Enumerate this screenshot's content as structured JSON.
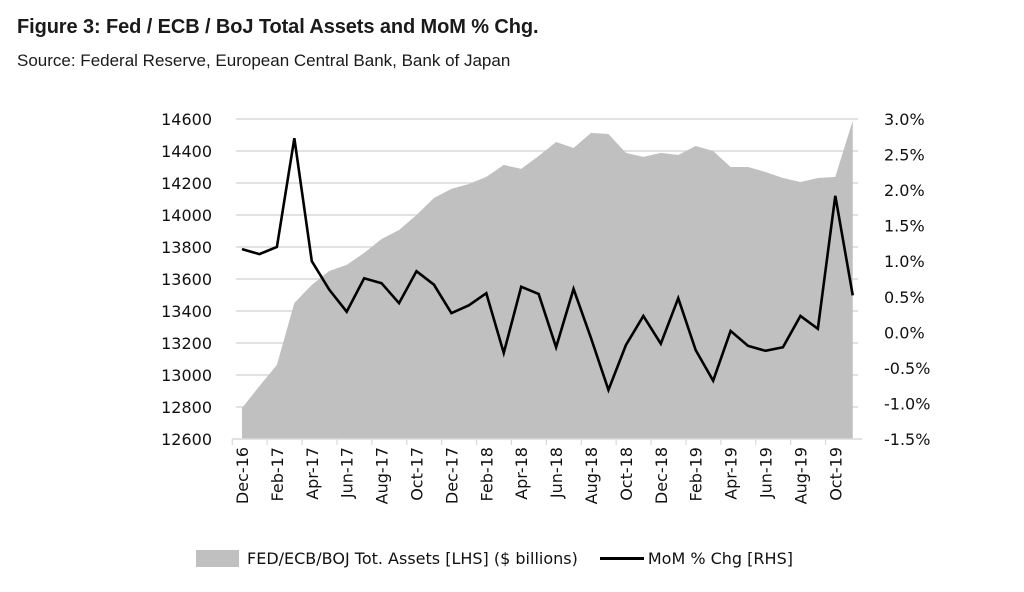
{
  "header": {
    "title": "Figure 3:  Fed / ECB / BoJ Total Assets and MoM % Chg.",
    "subtitle": "Source: Federal Reserve, European Central Bank, Bank of Japan"
  },
  "colors": {
    "area_fill": "#c0c0c0",
    "line": "#000000",
    "grid": "#d9d9d9"
  },
  "chart_data": {
    "type": "area+line",
    "title": "Fed / ECB / BoJ Total Assets and MoM % Chg.",
    "x": [
      "Dec-16",
      "Jan-17",
      "Feb-17",
      "Mar-17",
      "Apr-17",
      "May-17",
      "Jun-17",
      "Jul-17",
      "Aug-17",
      "Sep-17",
      "Oct-17",
      "Nov-17",
      "Dec-17",
      "Jan-18",
      "Feb-18",
      "Mar-18",
      "Apr-18",
      "May-18",
      "Jun-18",
      "Jul-18",
      "Aug-18",
      "Sep-18",
      "Oct-18",
      "Nov-18",
      "Dec-18",
      "Jan-19",
      "Feb-19",
      "Mar-19",
      "Apr-19",
      "May-19",
      "Jun-19",
      "Jul-19",
      "Aug-19",
      "Sep-19",
      "Oct-19",
      "Nov-19"
    ],
    "x_tick_labels": [
      "Dec-16",
      "Feb-17",
      "Apr-17",
      "Jun-17",
      "Aug-17",
      "Oct-17",
      "Dec-17",
      "Feb-18",
      "Apr-18",
      "Jun-18",
      "Aug-18",
      "Oct-18",
      "Dec-18",
      "Feb-19",
      "Apr-19",
      "Jun-19",
      "Aug-19",
      "Oct-19"
    ],
    "series": [
      {
        "name": "FED/ECB/BOJ Tot. Assets [LHS] ($ billions)",
        "type": "area",
        "axis": "left",
        "values": [
          12794,
          12931,
          13063,
          13450,
          13563,
          13650,
          13688,
          13763,
          13850,
          13906,
          14000,
          14106,
          14163,
          14194,
          14238,
          14313,
          14288,
          14369,
          14456,
          14419,
          14513,
          14506,
          14388,
          14363,
          14388,
          14375,
          14431,
          14400,
          14300,
          14300,
          14269,
          14231,
          14206,
          14231,
          14238,
          14590
        ]
      },
      {
        "name": "MoM % Chg [RHS]",
        "type": "line",
        "axis": "right",
        "values": [
          1.17,
          1.1,
          1.2,
          2.73,
          1.0,
          0.6,
          0.29,
          0.76,
          0.69,
          0.41,
          0.86,
          0.67,
          0.27,
          0.38,
          0.55,
          -0.29,
          0.64,
          0.54,
          -0.21,
          0.61,
          -0.08,
          -0.81,
          -0.18,
          0.23,
          -0.16,
          0.48,
          -0.25,
          -0.68,
          0.02,
          -0.19,
          -0.26,
          -0.21,
          0.23,
          0.05,
          1.92,
          0.52
        ]
      }
    ],
    "y_left": {
      "ylim": [
        12600,
        14600
      ],
      "ticks": [
        12600,
        12800,
        13000,
        13200,
        13400,
        13600,
        13800,
        14000,
        14200,
        14400,
        14600
      ],
      "tick_labels": [
        "12600",
        "12800",
        "13000",
        "13200",
        "13400",
        "13600",
        "13800",
        "14000",
        "14200",
        "14400",
        "14600"
      ]
    },
    "y_right": {
      "ylim": [
        -1.5,
        3.0
      ],
      "ticks": [
        -1.5,
        -1.0,
        -0.5,
        0.0,
        0.5,
        1.0,
        1.5,
        2.0,
        2.5,
        3.0
      ],
      "tick_labels": [
        "-1.5%",
        "-1.0%",
        "-0.5%",
        "0.0%",
        "0.5%",
        "1.0%",
        "1.5%",
        "2.0%",
        "2.5%",
        "3.0%"
      ]
    },
    "grid": true,
    "legend": {
      "position": "bottom",
      "entries": [
        "FED/ECB/BOJ Tot. Assets [LHS] ($ billions)",
        "MoM % Chg [RHS]"
      ]
    },
    "xlabel": "",
    "ylabel": ""
  }
}
